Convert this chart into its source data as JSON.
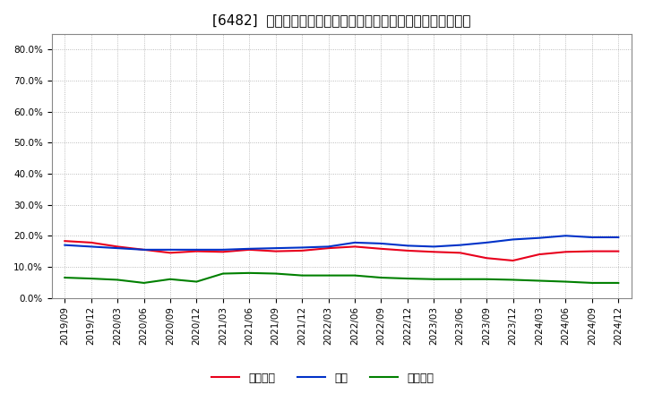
{
  "title": "[6482]  売上債権、在庫、買入債務の総資産に対する比率の推移",
  "ylim": [
    0.0,
    0.85
  ],
  "yticks": [
    0.0,
    0.1,
    0.2,
    0.3,
    0.4,
    0.5,
    0.6,
    0.7,
    0.8
  ],
  "ytick_labels": [
    "0.0%",
    "10.0%",
    "20.0%",
    "30.0%",
    "40.0%",
    "50.0%",
    "60.0%",
    "70.0%",
    "80.0%"
  ],
  "dates": [
    "2019/09",
    "2019/12",
    "2020/03",
    "2020/06",
    "2020/09",
    "2020/12",
    "2021/03",
    "2021/06",
    "2021/09",
    "2021/12",
    "2022/03",
    "2022/06",
    "2022/09",
    "2022/12",
    "2023/03",
    "2023/06",
    "2023/09",
    "2023/12",
    "2024/03",
    "2024/06",
    "2024/09",
    "2024/12"
  ],
  "urikake": [
    0.183,
    0.178,
    0.165,
    0.155,
    0.145,
    0.15,
    0.148,
    0.155,
    0.15,
    0.152,
    0.16,
    0.165,
    0.158,
    0.152,
    0.148,
    0.145,
    0.128,
    0.12,
    0.14,
    0.148,
    0.15,
    0.15
  ],
  "zaiko": [
    0.17,
    0.165,
    0.16,
    0.155,
    0.155,
    0.155,
    0.155,
    0.158,
    0.16,
    0.162,
    0.165,
    0.178,
    0.175,
    0.168,
    0.165,
    0.17,
    0.178,
    0.188,
    0.193,
    0.2,
    0.195,
    0.195
  ],
  "kaiire": [
    0.065,
    0.062,
    0.058,
    0.048,
    0.06,
    0.052,
    0.078,
    0.08,
    0.078,
    0.072,
    0.072,
    0.072,
    0.065,
    0.062,
    0.06,
    0.06,
    0.06,
    0.058,
    0.055,
    0.052,
    0.048,
    0.048
  ],
  "urikake_color": "#e8001c",
  "zaiko_color": "#0032c8",
  "kaiire_color": "#008000",
  "legend_labels": [
    "売上債権",
    "在庫",
    "買入債務"
  ],
  "background_color": "#ffffff",
  "plot_bg_color": "#ffffff",
  "grid_color": "#aaaaaa",
  "title_fontsize": 11,
  "tick_fontsize": 7.5,
  "legend_fontsize": 9,
  "line_width": 1.5
}
